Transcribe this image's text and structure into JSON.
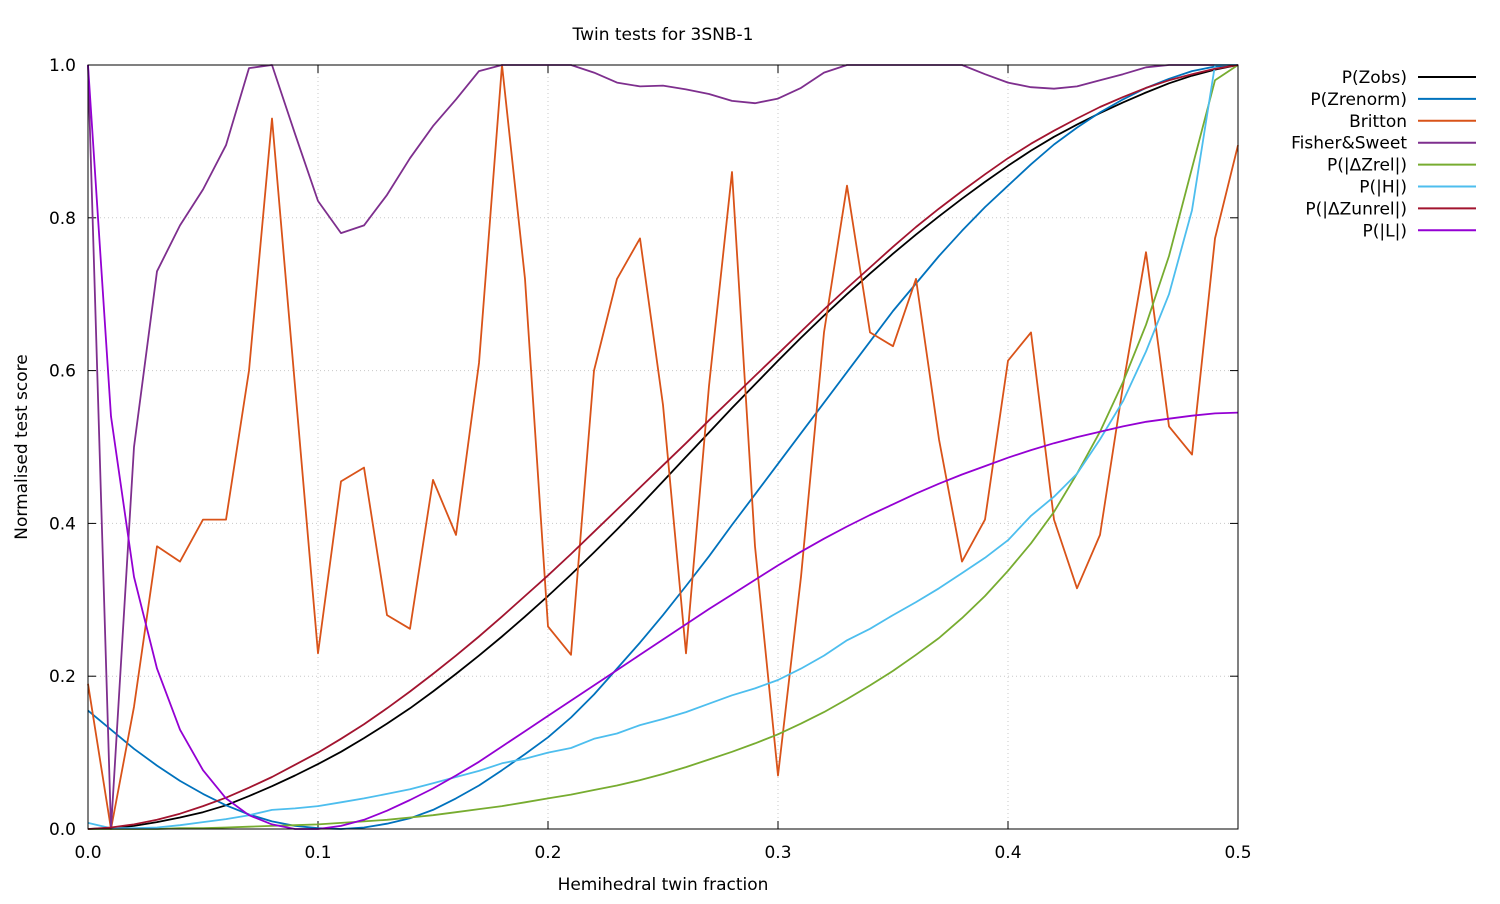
{
  "chart_data": {
    "type": "line",
    "title": "Twin tests for 3SNB-1",
    "xlabel": "Hemihedral twin fraction",
    "ylabel": "Normalised test score",
    "xlim": [
      0,
      0.5
    ],
    "ylim": [
      0,
      1
    ],
    "xticks": [
      "0.0",
      "0.1",
      "0.2",
      "0.3",
      "0.4",
      "0.5"
    ],
    "yticks": [
      "0.0",
      "0.2",
      "0.4",
      "0.6",
      "0.8",
      "1.0"
    ],
    "grid": true,
    "legend_position": "outside-right",
    "x": [
      0,
      0.01,
      0.02,
      0.03,
      0.04,
      0.05,
      0.06,
      0.07,
      0.08,
      0.09,
      0.1,
      0.11,
      0.12,
      0.13,
      0.14,
      0.15,
      0.16,
      0.17,
      0.18,
      0.19,
      0.2,
      0.21,
      0.22,
      0.23,
      0.24,
      0.25,
      0.26,
      0.27,
      0.28,
      0.29,
      0.3,
      0.31,
      0.32,
      0.33,
      0.34,
      0.35,
      0.36,
      0.37,
      0.38,
      0.39,
      0.4,
      0.41,
      0.42,
      0.43,
      0.44,
      0.45,
      0.46,
      0.47,
      0.48,
      0.49,
      0.5
    ],
    "series": [
      {
        "name": "P(Zobs)",
        "color": "#000000",
        "values": [
          0,
          0.001,
          0.004,
          0.009,
          0.015,
          0.022,
          0.031,
          0.043,
          0.056,
          0.07,
          0.085,
          0.101,
          0.119,
          0.138,
          0.158,
          0.18,
          0.203,
          0.227,
          0.252,
          0.278,
          0.305,
          0.333,
          0.362,
          0.392,
          0.423,
          0.455,
          0.487,
          0.519,
          0.551,
          0.582,
          0.613,
          0.643,
          0.672,
          0.7,
          0.727,
          0.753,
          0.778,
          0.802,
          0.825,
          0.847,
          0.868,
          0.888,
          0.906,
          0.922,
          0.937,
          0.951,
          0.964,
          0.976,
          0.986,
          0.994,
          1.0
        ]
      },
      {
        "name": "P(Zrenorm)",
        "color": "#0072bd",
        "values": [
          0.155,
          0.13,
          0.105,
          0.083,
          0.063,
          0.046,
          0.031,
          0.019,
          0.01,
          0.004,
          0.001,
          0,
          0.002,
          0.007,
          0.014,
          0.025,
          0.04,
          0.057,
          0.077,
          0.098,
          0.12,
          0.146,
          0.176,
          0.21,
          0.244,
          0.28,
          0.318,
          0.357,
          0.398,
          0.438,
          0.478,
          0.518,
          0.558,
          0.598,
          0.638,
          0.678,
          0.714,
          0.75,
          0.783,
          0.814,
          0.842,
          0.87,
          0.896,
          0.918,
          0.938,
          0.955,
          0.97,
          0.982,
          0.992,
          0.998,
          1.0
        ]
      },
      {
        "name": "Britton",
        "color": "#d95319",
        "values": [
          0.19,
          0.0,
          0.16,
          0.37,
          0.35,
          0.405,
          0.405,
          0.6,
          0.93,
          0.58,
          0.23,
          0.455,
          0.473,
          0.28,
          0.262,
          0.457,
          0.385,
          0.61,
          1.0,
          0.72,
          0.265,
          0.228,
          0.6,
          0.72,
          0.773,
          0.555,
          0.23,
          0.58,
          0.86,
          0.37,
          0.07,
          0.33,
          0.65,
          0.842,
          0.65,
          0.632,
          0.72,
          0.51,
          0.35,
          0.405,
          0.613,
          0.65,
          0.405,
          0.315,
          0.385,
          0.58,
          0.755,
          0.527,
          0.49,
          0.773,
          0.895
        ]
      },
      {
        "name": "Fisher&Sweet",
        "color": "#7e2f8e",
        "values": [
          1.0,
          0.0,
          0.5,
          0.73,
          0.79,
          0.837,
          0.895,
          0.996,
          1.0,
          0.91,
          0.822,
          0.78,
          0.79,
          0.83,
          0.878,
          0.92,
          0.955,
          0.992,
          1.0,
          1.0,
          1.0,
          1.0,
          0.99,
          0.977,
          0.972,
          0.973,
          0.968,
          0.962,
          0.953,
          0.95,
          0.956,
          0.97,
          0.99,
          1.0,
          1.0,
          1.0,
          1.0,
          1.0,
          1.0,
          0.988,
          0.977,
          0.971,
          0.969,
          0.972,
          0.98,
          0.988,
          0.997,
          1.0,
          1.0,
          1.0,
          1.0
        ]
      },
      {
        "name": "P(|ΔZrel|)",
        "color": "#77ac30",
        "values": [
          0,
          0,
          0,
          0,
          0.001,
          0.001,
          0.002,
          0.003,
          0.004,
          0.005,
          0.006,
          0.008,
          0.01,
          0.012,
          0.015,
          0.018,
          0.022,
          0.026,
          0.03,
          0.035,
          0.04,
          0.045,
          0.051,
          0.057,
          0.064,
          0.072,
          0.081,
          0.091,
          0.101,
          0.112,
          0.124,
          0.138,
          0.153,
          0.17,
          0.188,
          0.207,
          0.228,
          0.25,
          0.276,
          0.305,
          0.338,
          0.374,
          0.415,
          0.465,
          0.52,
          0.585,
          0.66,
          0.75,
          0.865,
          0.98,
          1.0
        ]
      },
      {
        "name": "P(|H|)",
        "color": "#4dbeee",
        "values": [
          0.008,
          0.001,
          0.001,
          0.002,
          0.005,
          0.009,
          0.013,
          0.018,
          0.025,
          0.027,
          0.03,
          0.035,
          0.04,
          0.046,
          0.052,
          0.06,
          0.068,
          0.076,
          0.086,
          0.092,
          0.1,
          0.106,
          0.118,
          0.125,
          0.136,
          0.144,
          0.153,
          0.164,
          0.175,
          0.184,
          0.195,
          0.21,
          0.227,
          0.247,
          0.262,
          0.28,
          0.297,
          0.315,
          0.335,
          0.355,
          0.378,
          0.41,
          0.435,
          0.465,
          0.51,
          0.56,
          0.625,
          0.7,
          0.81,
          1.0,
          1.0
        ]
      },
      {
        "name": "P(|ΔZunrel|)",
        "color": "#a2142f",
        "values": [
          0,
          0.002,
          0.006,
          0.012,
          0.02,
          0.03,
          0.041,
          0.054,
          0.068,
          0.084,
          0.1,
          0.118,
          0.137,
          0.158,
          0.18,
          0.203,
          0.227,
          0.252,
          0.278,
          0.305,
          0.332,
          0.36,
          0.389,
          0.418,
          0.447,
          0.476,
          0.505,
          0.535,
          0.564,
          0.593,
          0.622,
          0.651,
          0.68,
          0.708,
          0.735,
          0.762,
          0.788,
          0.812,
          0.835,
          0.857,
          0.878,
          0.897,
          0.914,
          0.93,
          0.945,
          0.958,
          0.97,
          0.98,
          0.988,
          0.995,
          1.0
        ]
      },
      {
        "name": "P(|L|)",
        "color": "#9400d3",
        "values": [
          1.0,
          0.54,
          0.33,
          0.21,
          0.13,
          0.077,
          0.04,
          0.018,
          0.006,
          0,
          0,
          0.004,
          0.012,
          0.024,
          0.038,
          0.053,
          0.07,
          0.088,
          0.108,
          0.128,
          0.148,
          0.168,
          0.188,
          0.208,
          0.228,
          0.248,
          0.268,
          0.288,
          0.307,
          0.326,
          0.345,
          0.363,
          0.38,
          0.396,
          0.411,
          0.425,
          0.439,
          0.452,
          0.464,
          0.475,
          0.486,
          0.496,
          0.505,
          0.513,
          0.52,
          0.527,
          0.533,
          0.537,
          0.541,
          0.544,
          0.545
        ]
      }
    ]
  }
}
